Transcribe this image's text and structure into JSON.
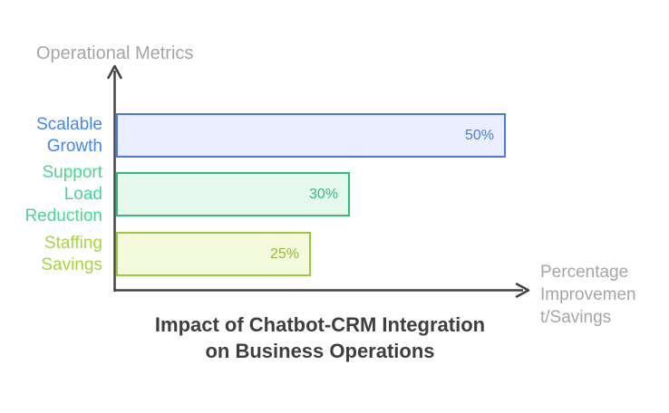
{
  "chart_data": {
    "type": "bar",
    "orientation": "horizontal",
    "title": "Impact of Chatbot-CRM Integration on Business Operations",
    "title_lines": [
      "Impact of Chatbot-CRM Integration",
      "on Business Operations"
    ],
    "xlabel": "Percentage Improvement/Savings",
    "xlabel_lines": [
      "Percentage",
      "Improvemen",
      "t/Savings"
    ],
    "ylabel": "Operational Metrics",
    "categories": [
      "Scalable Growth",
      "Support Load Reduction",
      "Staffing Savings"
    ],
    "values": [
      50,
      30,
      25
    ],
    "value_labels": [
      "50%",
      "30%",
      "25%"
    ],
    "xlim": [
      0,
      52
    ],
    "legend": "none",
    "grid": "off",
    "bars": [
      {
        "category": "Scalable Growth",
        "value": 50,
        "label": "50%",
        "fill": "#E9EFFC",
        "border": "#4A7CE0",
        "category_color": "#4285F4",
        "value_color": "#4A7CE2"
      },
      {
        "category": "Support Load Reduction",
        "value": 30,
        "label": "30%",
        "fill": "#E6F9EF",
        "border": "#2EBE7D",
        "category_color": "#48D597",
        "value_color": "#2EBE7D"
      },
      {
        "category": "Staffing Savings",
        "value": 25,
        "label": "25%",
        "fill": "#F4FADC",
        "border": "#9DC939",
        "category_color": "#A5D63E",
        "value_color": "#8FBE37"
      }
    ],
    "axis_color": "#424242",
    "axis_label_color": "#A5A5A5",
    "title_color": "#3E3E3E",
    "background_color": "#FFFFFF"
  }
}
